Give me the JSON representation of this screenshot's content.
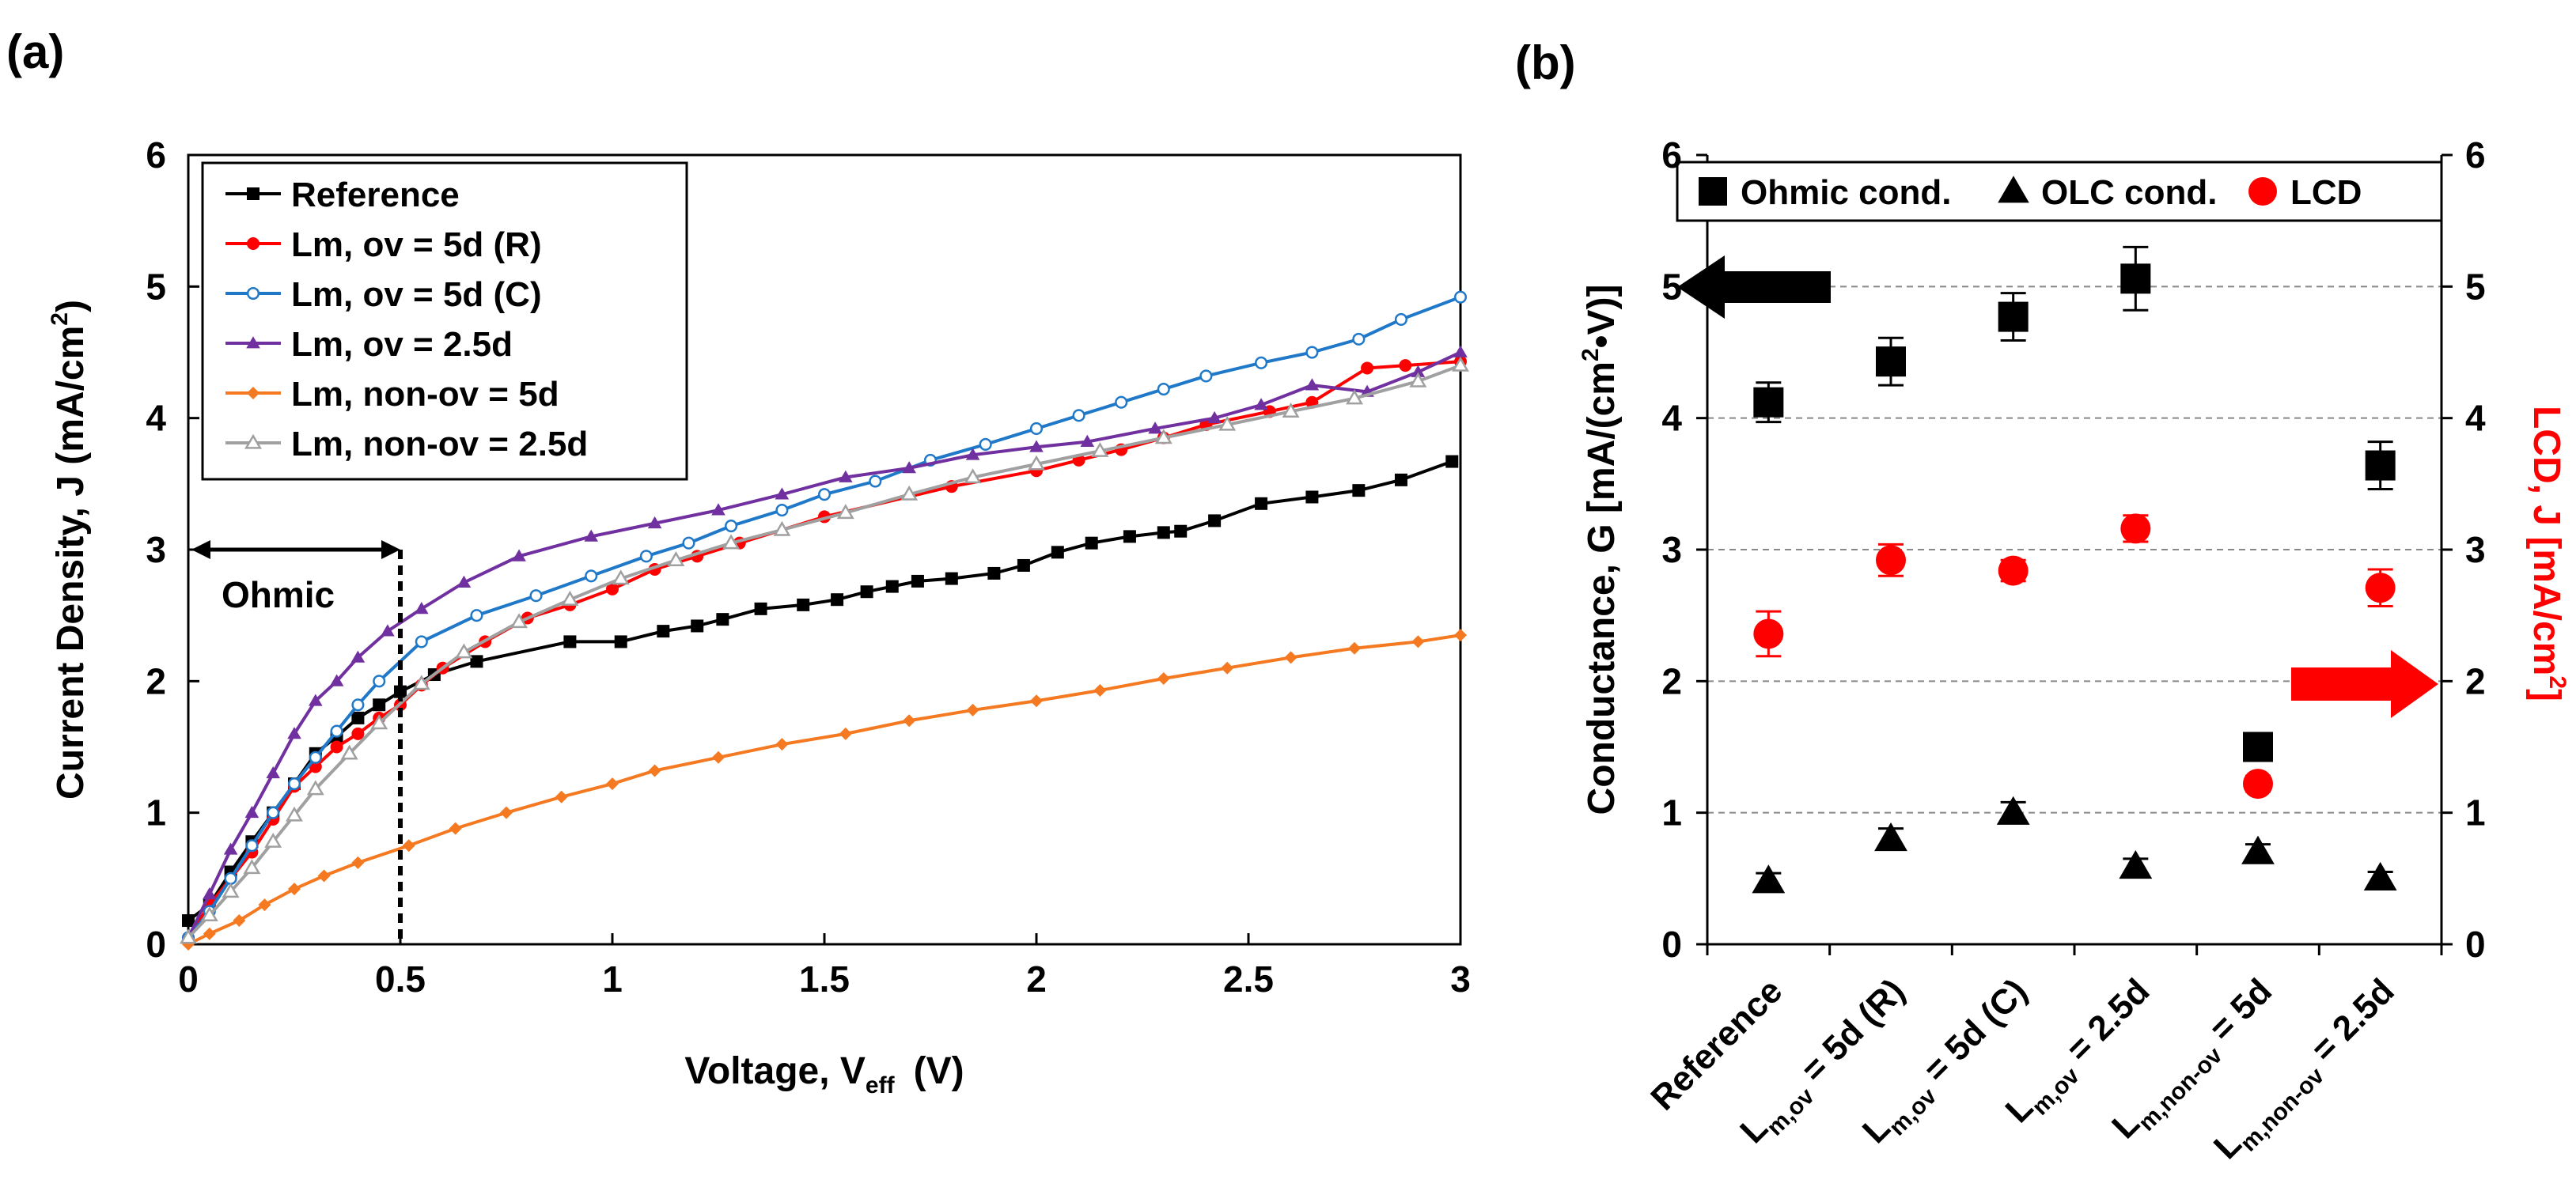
{
  "panel_a": {
    "letter": "(a)",
    "annotation": "Ohmic"
  },
  "panel_b": {
    "letter": "(b)"
  },
  "chart_data": [
    {
      "type": "line",
      "xlabel_main": "Voltage, V",
      "xlabel_sub": "eff",
      "xlabel_unit": "(V)",
      "ylabel_main": "Current Density, J (mA/cm",
      "ylabel_sup": "2",
      "ylabel_close": ")",
      "xlim": [
        0,
        3
      ],
      "ylim": [
        0,
        6
      ],
      "x_ticks": [
        0,
        0.5,
        1,
        1.5,
        2,
        2.5,
        3
      ],
      "x_tick_labels": [
        "0",
        "0.5",
        "1",
        "1.5",
        "2",
        "2.5",
        "3"
      ],
      "y_ticks": [
        0,
        1,
        2,
        3,
        4,
        5,
        6
      ],
      "y_tick_labels": [
        "0",
        "1",
        "2",
        "3",
        "4",
        "5",
        "6"
      ],
      "legend_position": "top-left",
      "series": [
        {
          "name": "Reference",
          "color": "#000000",
          "marker": "square",
          "x": [
            0,
            0.05,
            0.1,
            0.15,
            0.2,
            0.25,
            0.3,
            0.35,
            0.4,
            0.45,
            0.5,
            0.58,
            0.68,
            0.9,
            1.02,
            1.12,
            1.2,
            1.26,
            1.35,
            1.45,
            1.53,
            1.6,
            1.66,
            1.72,
            1.8,
            1.9,
            1.97,
            2.05,
            2.13,
            2.22,
            2.3,
            2.34,
            2.42,
            2.53,
            2.65,
            2.76,
            2.86,
            2.98
          ],
          "y": [
            0.18,
            0.3,
            0.55,
            0.78,
            1.0,
            1.22,
            1.45,
            1.58,
            1.72,
            1.82,
            1.92,
            2.05,
            2.15,
            2.3,
            2.3,
            2.38,
            2.42,
            2.47,
            2.55,
            2.58,
            2.62,
            2.68,
            2.72,
            2.76,
            2.78,
            2.82,
            2.88,
            2.98,
            3.05,
            3.1,
            3.13,
            3.14,
            3.22,
            3.35,
            3.4,
            3.45,
            3.53,
            3.67
          ]
        },
        {
          "name": "Lm, ov = 5d (R)",
          "color": "#ff0000",
          "marker": "circle",
          "x": [
            0,
            0.05,
            0.1,
            0.15,
            0.2,
            0.25,
            0.3,
            0.35,
            0.4,
            0.45,
            0.5,
            0.55,
            0.6,
            0.7,
            0.8,
            0.9,
            1.0,
            1.1,
            1.2,
            1.3,
            1.5,
            1.8,
            2.0,
            2.1,
            2.2,
            2.3,
            2.4,
            2.55,
            2.65,
            2.78,
            2.87,
            3.0
          ],
          "y": [
            0.05,
            0.3,
            0.5,
            0.7,
            0.95,
            1.2,
            1.35,
            1.5,
            1.6,
            1.72,
            1.82,
            1.97,
            2.1,
            2.3,
            2.48,
            2.58,
            2.7,
            2.85,
            2.95,
            3.05,
            3.25,
            3.48,
            3.6,
            3.68,
            3.76,
            3.85,
            3.95,
            4.05,
            4.12,
            4.38,
            4.4,
            4.43
          ]
        },
        {
          "name": "Lm, ov = 5d (C)",
          "color": "#1f78c8",
          "marker": "open-circle",
          "x": [
            0,
            0.05,
            0.1,
            0.15,
            0.2,
            0.25,
            0.3,
            0.35,
            0.4,
            0.45,
            0.55,
            0.68,
            0.82,
            0.95,
            1.08,
            1.18,
            1.28,
            1.4,
            1.5,
            1.62,
            1.75,
            1.88,
            2.0,
            2.1,
            2.2,
            2.3,
            2.4,
            2.53,
            2.65,
            2.76,
            2.86,
            3.0
          ],
          "y": [
            0.05,
            0.25,
            0.5,
            0.75,
            1.0,
            1.22,
            1.42,
            1.62,
            1.82,
            2.0,
            2.3,
            2.5,
            2.65,
            2.8,
            2.95,
            3.05,
            3.18,
            3.3,
            3.42,
            3.52,
            3.68,
            3.8,
            3.92,
            4.02,
            4.12,
            4.22,
            4.32,
            4.42,
            4.5,
            4.6,
            4.75,
            4.92
          ]
        },
        {
          "name": "Lm, ov = 2.5d",
          "color": "#7030a0",
          "marker": "triangle",
          "x": [
            0,
            0.05,
            0.1,
            0.15,
            0.2,
            0.25,
            0.3,
            0.35,
            0.4,
            0.47,
            0.55,
            0.65,
            0.78,
            0.95,
            1.1,
            1.25,
            1.4,
            1.55,
            1.7,
            1.85,
            2.0,
            2.12,
            2.28,
            2.42,
            2.53,
            2.65,
            2.78,
            2.9,
            3.0
          ],
          "y": [
            0.05,
            0.38,
            0.72,
            1.0,
            1.3,
            1.6,
            1.85,
            2.0,
            2.18,
            2.38,
            2.55,
            2.75,
            2.95,
            3.1,
            3.2,
            3.3,
            3.42,
            3.55,
            3.62,
            3.72,
            3.78,
            3.82,
            3.92,
            4.0,
            4.1,
            4.25,
            4.2,
            4.35,
            4.5
          ]
        },
        {
          "name": "Lm, non-ov = 5d",
          "color": "#f47920",
          "marker": "diamond",
          "x": [
            0,
            0.05,
            0.12,
            0.18,
            0.25,
            0.32,
            0.4,
            0.52,
            0.63,
            0.75,
            0.88,
            1.0,
            1.1,
            1.25,
            1.4,
            1.55,
            1.7,
            1.85,
            2.0,
            2.15,
            2.3,
            2.45,
            2.6,
            2.75,
            2.9,
            3.0
          ],
          "y": [
            0.0,
            0.08,
            0.18,
            0.3,
            0.42,
            0.52,
            0.62,
            0.75,
            0.88,
            1.0,
            1.12,
            1.22,
            1.32,
            1.42,
            1.52,
            1.6,
            1.7,
            1.78,
            1.85,
            1.93,
            2.02,
            2.1,
            2.18,
            2.25,
            2.3,
            2.35
          ]
        },
        {
          "name": "Lm, non-ov = 2.5d",
          "color": "#a0a0a0",
          "marker": "open-triangle",
          "x": [
            0,
            0.05,
            0.1,
            0.15,
            0.2,
            0.25,
            0.3,
            0.38,
            0.45,
            0.55,
            0.65,
            0.78,
            0.9,
            1.02,
            1.15,
            1.28,
            1.4,
            1.55,
            1.7,
            1.85,
            2.0,
            2.15,
            2.3,
            2.45,
            2.6,
            2.75,
            2.9,
            3.0
          ],
          "y": [
            0.05,
            0.22,
            0.4,
            0.58,
            0.78,
            0.98,
            1.18,
            1.45,
            1.68,
            1.98,
            2.22,
            2.45,
            2.62,
            2.78,
            2.92,
            3.05,
            3.15,
            3.28,
            3.42,
            3.55,
            3.65,
            3.75,
            3.85,
            3.95,
            4.05,
            4.15,
            4.28,
            4.4
          ]
        }
      ]
    },
    {
      "type": "scatter",
      "ylabel_main": "Conductance, G [mA/(cm",
      "ylabel_sup": "2",
      "ylabel_close": "•V)]",
      "y2label_main": "LCD, J [mA/cm",
      "y2label_sup": "2",
      "y2label_close": "]",
      "ylim": [
        0,
        6
      ],
      "y2lim": [
        0,
        6
      ],
      "y_ticks": [
        0,
        1,
        2,
        3,
        4,
        5,
        6
      ],
      "y_tick_labels": [
        "0",
        "1",
        "2",
        "3",
        "4",
        "5",
        "6"
      ],
      "legend_position": "top",
      "categories": [
        {
          "main": "Reference",
          "sub": "",
          "tail": ""
        },
        {
          "main": "L",
          "sub": "m,ov",
          "tail": " = 5d (R)"
        },
        {
          "main": "L",
          "sub": "m,ov",
          "tail": " = 5d (C)"
        },
        {
          "main": "L",
          "sub": "m,ov",
          "tail": " = 2.5d"
        },
        {
          "main": "L",
          "sub": "m,non-ov",
          "tail": " = 5d"
        },
        {
          "main": "L",
          "sub": "m,non-ov",
          "tail": " = 2.5d"
        }
      ],
      "series": [
        {
          "name": "Ohmic cond.",
          "axis": "left",
          "color": "#000000",
          "marker": "square",
          "values": [
            4.12,
            4.43,
            4.77,
            5.06,
            1.5,
            3.64
          ],
          "errors": [
            0.15,
            0.18,
            0.18,
            0.24,
            0.06,
            0.18
          ]
        },
        {
          "name": "OLC cond.",
          "axis": "left",
          "color": "#000000",
          "marker": "triangle",
          "values": [
            0.48,
            0.8,
            1.0,
            0.59,
            0.7,
            0.5
          ],
          "errors": [
            0.06,
            0.08,
            0.08,
            0.06,
            0.06,
            0.05
          ]
        },
        {
          "name": "LCD",
          "axis": "right",
          "color": "#ff0000",
          "marker": "circle",
          "values": [
            2.36,
            2.92,
            2.84,
            3.16,
            1.22,
            2.71
          ],
          "errors": [
            0.17,
            0.12,
            0.08,
            0.1,
            0.06,
            0.14
          ]
        }
      ]
    }
  ]
}
